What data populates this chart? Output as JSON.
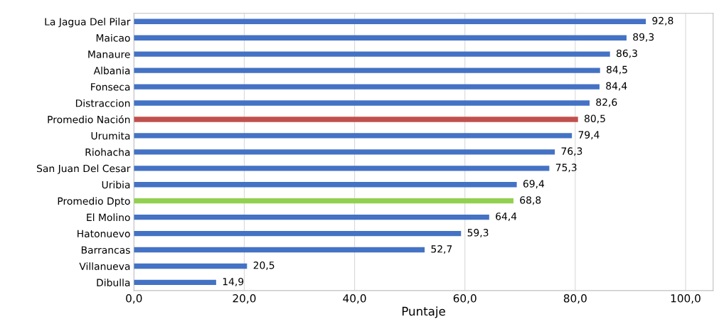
{
  "chart_data": {
    "type": "bar",
    "orientation": "horizontal",
    "xlabel": "Puntaje",
    "categories": [
      "La Jagua Del Pilar",
      "Maicao",
      "Manaure",
      "Albania",
      "Fonseca",
      "Distraccion",
      "Promedio Nación",
      "Urumita",
      "Riohacha",
      "San Juan Del Cesar",
      "Uribia",
      "Promedio Dpto",
      "El Molino",
      "Hatonuevo",
      "Barrancas",
      "Villanueva",
      "Dibulla"
    ],
    "values": [
      92.8,
      89.3,
      86.3,
      84.5,
      84.4,
      82.6,
      80.5,
      79.4,
      76.3,
      75.3,
      69.4,
      68.8,
      64.4,
      59.3,
      52.7,
      20.5,
      14.9
    ],
    "colors": [
      "#4472c4",
      "#4472c4",
      "#4472c4",
      "#4472c4",
      "#4472c4",
      "#4472c4",
      "#c0504d",
      "#4472c4",
      "#4472c4",
      "#4472c4",
      "#4472c4",
      "#92d050",
      "#4472c4",
      "#4472c4",
      "#4472c4",
      "#4472c4",
      "#4472c4"
    ],
    "value_labels": [
      "92,8",
      "89,3",
      "86,3",
      "84,5",
      "84,4",
      "82,6",
      "80,5",
      "79,4",
      "76,3",
      "75,3",
      "69,4",
      "68,8",
      "64,4",
      "59,3",
      "52,7",
      "20,5",
      "14,9"
    ],
    "xlim": [
      0,
      105
    ],
    "xticks": [
      {
        "value": 0,
        "label": "0,0"
      },
      {
        "value": 20,
        "label": "20,0"
      },
      {
        "value": 40,
        "label": "40,0"
      },
      {
        "value": 60,
        "label": "60,0"
      },
      {
        "value": 80,
        "label": "80,0"
      },
      {
        "value": 100,
        "label": "100,0"
      }
    ],
    "grid": "x"
  }
}
